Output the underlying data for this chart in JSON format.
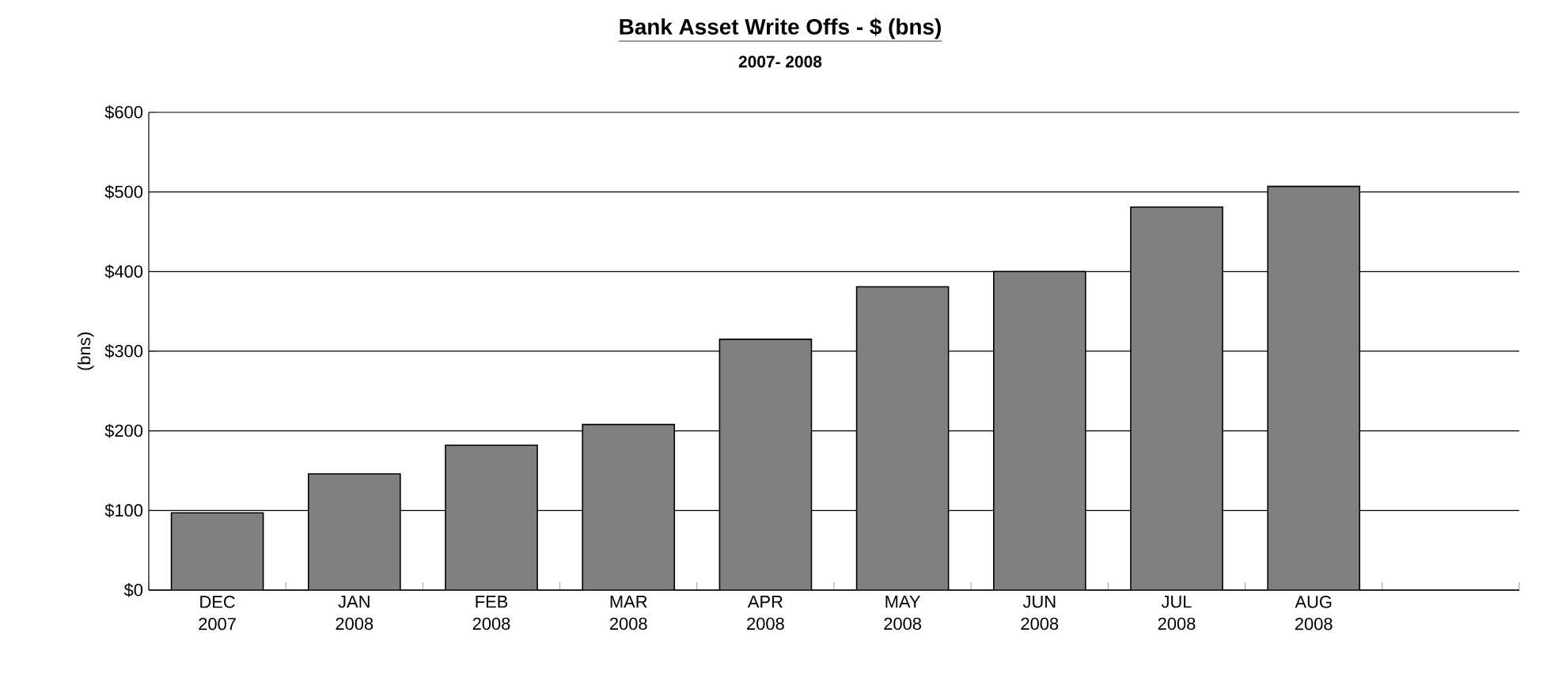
{
  "chart_data": {
    "type": "bar",
    "title": "Bank Asset Write Offs - $ (bns)",
    "subtitle": "2007- 2008",
    "ylabel": "(bns)",
    "categories": [
      "DEC 2007",
      "JAN 2008",
      "FEB 2008",
      "MAR 2008",
      "APR 2008",
      "MAY 2008",
      "JUN 2008",
      "JUL 2008",
      "AUG 2008",
      null
    ],
    "values": [
      97,
      146,
      182,
      208,
      315,
      381,
      400,
      481,
      507,
      null
    ],
    "color": "#808080",
    "ylim": [
      0,
      600
    ],
    "yticks": [
      {
        "value": 0,
        "label": "$0"
      },
      {
        "value": 100,
        "label": "$100"
      },
      {
        "value": 200,
        "label": "$200"
      },
      {
        "value": 300,
        "label": "$300"
      },
      {
        "value": 400,
        "label": "$400"
      },
      {
        "value": 500,
        "label": "$500"
      },
      {
        "value": 600,
        "label": "$600"
      }
    ],
    "grid": "y"
  }
}
